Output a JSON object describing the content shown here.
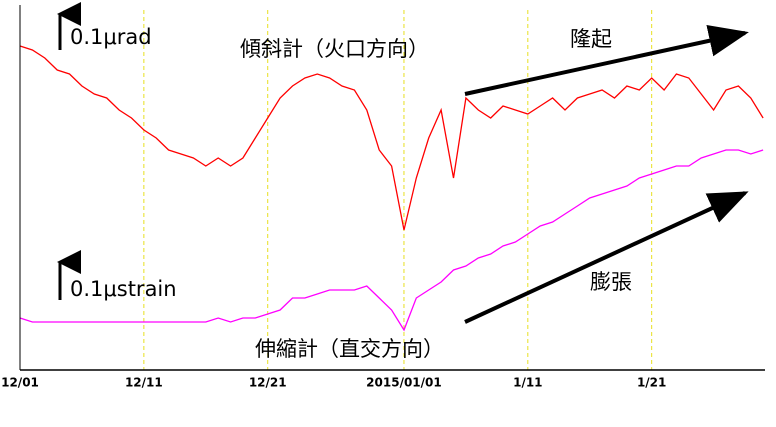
{
  "chart_data": {
    "type": "line",
    "categories": [
      "12/01",
      null,
      null,
      null,
      null,
      null,
      null,
      null,
      null,
      null,
      "12/11",
      null,
      null,
      null,
      null,
      null,
      null,
      null,
      null,
      null,
      "12/21",
      null,
      null,
      null,
      null,
      null,
      null,
      null,
      null,
      null,
      null,
      "2015/01/01",
      null,
      null,
      null,
      null,
      null,
      null,
      null,
      null,
      null,
      "1/11",
      null,
      null,
      null,
      null,
      null,
      null,
      null,
      null,
      null,
      "1/21",
      null,
      null,
      null,
      null,
      null,
      null,
      null,
      null,
      null
    ],
    "series": [
      {
        "name": "傾斜計（火口方向）",
        "color": "#ff0000",
        "values": [
          0.81,
          0.8,
          0.78,
          0.75,
          0.74,
          0.71,
          0.69,
          0.68,
          0.65,
          0.63,
          0.6,
          0.58,
          0.55,
          0.54,
          0.53,
          0.51,
          0.53,
          0.51,
          0.53,
          0.58,
          0.63,
          0.68,
          0.71,
          0.73,
          0.74,
          0.73,
          0.71,
          0.7,
          0.65,
          0.55,
          0.51,
          0.35,
          0.48,
          0.58,
          0.65,
          0.48,
          0.68,
          0.65,
          0.63,
          0.66,
          0.65,
          0.64,
          0.66,
          0.68,
          0.65,
          0.68,
          0.69,
          0.7,
          0.68,
          0.71,
          0.7,
          0.73,
          0.7,
          0.74,
          0.73,
          0.69,
          0.65,
          0.7,
          0.71,
          0.68,
          0.63
        ]
      },
      {
        "name": "伸縮計（直交方向）",
        "color": "#ff00ff",
        "values": [
          0.13,
          0.12,
          0.12,
          0.12,
          0.12,
          0.12,
          0.12,
          0.12,
          0.12,
          0.12,
          0.12,
          0.12,
          0.12,
          0.12,
          0.12,
          0.12,
          0.13,
          0.12,
          0.13,
          0.13,
          0.14,
          0.15,
          0.18,
          0.18,
          0.19,
          0.2,
          0.2,
          0.2,
          0.21,
          0.18,
          0.15,
          0.1,
          0.18,
          0.2,
          0.22,
          0.25,
          0.26,
          0.28,
          0.29,
          0.31,
          0.32,
          0.34,
          0.36,
          0.37,
          0.39,
          0.41,
          0.43,
          0.44,
          0.45,
          0.46,
          0.48,
          0.49,
          0.5,
          0.51,
          0.51,
          0.53,
          0.54,
          0.55,
          0.55,
          0.54,
          0.55
        ]
      }
    ],
    "ylim": [
      0,
      0.9
    ],
    "grid": true,
    "annotations": [
      "0.1μrad",
      "0.1μstrain",
      "隆起",
      "膨張"
    ]
  }
}
